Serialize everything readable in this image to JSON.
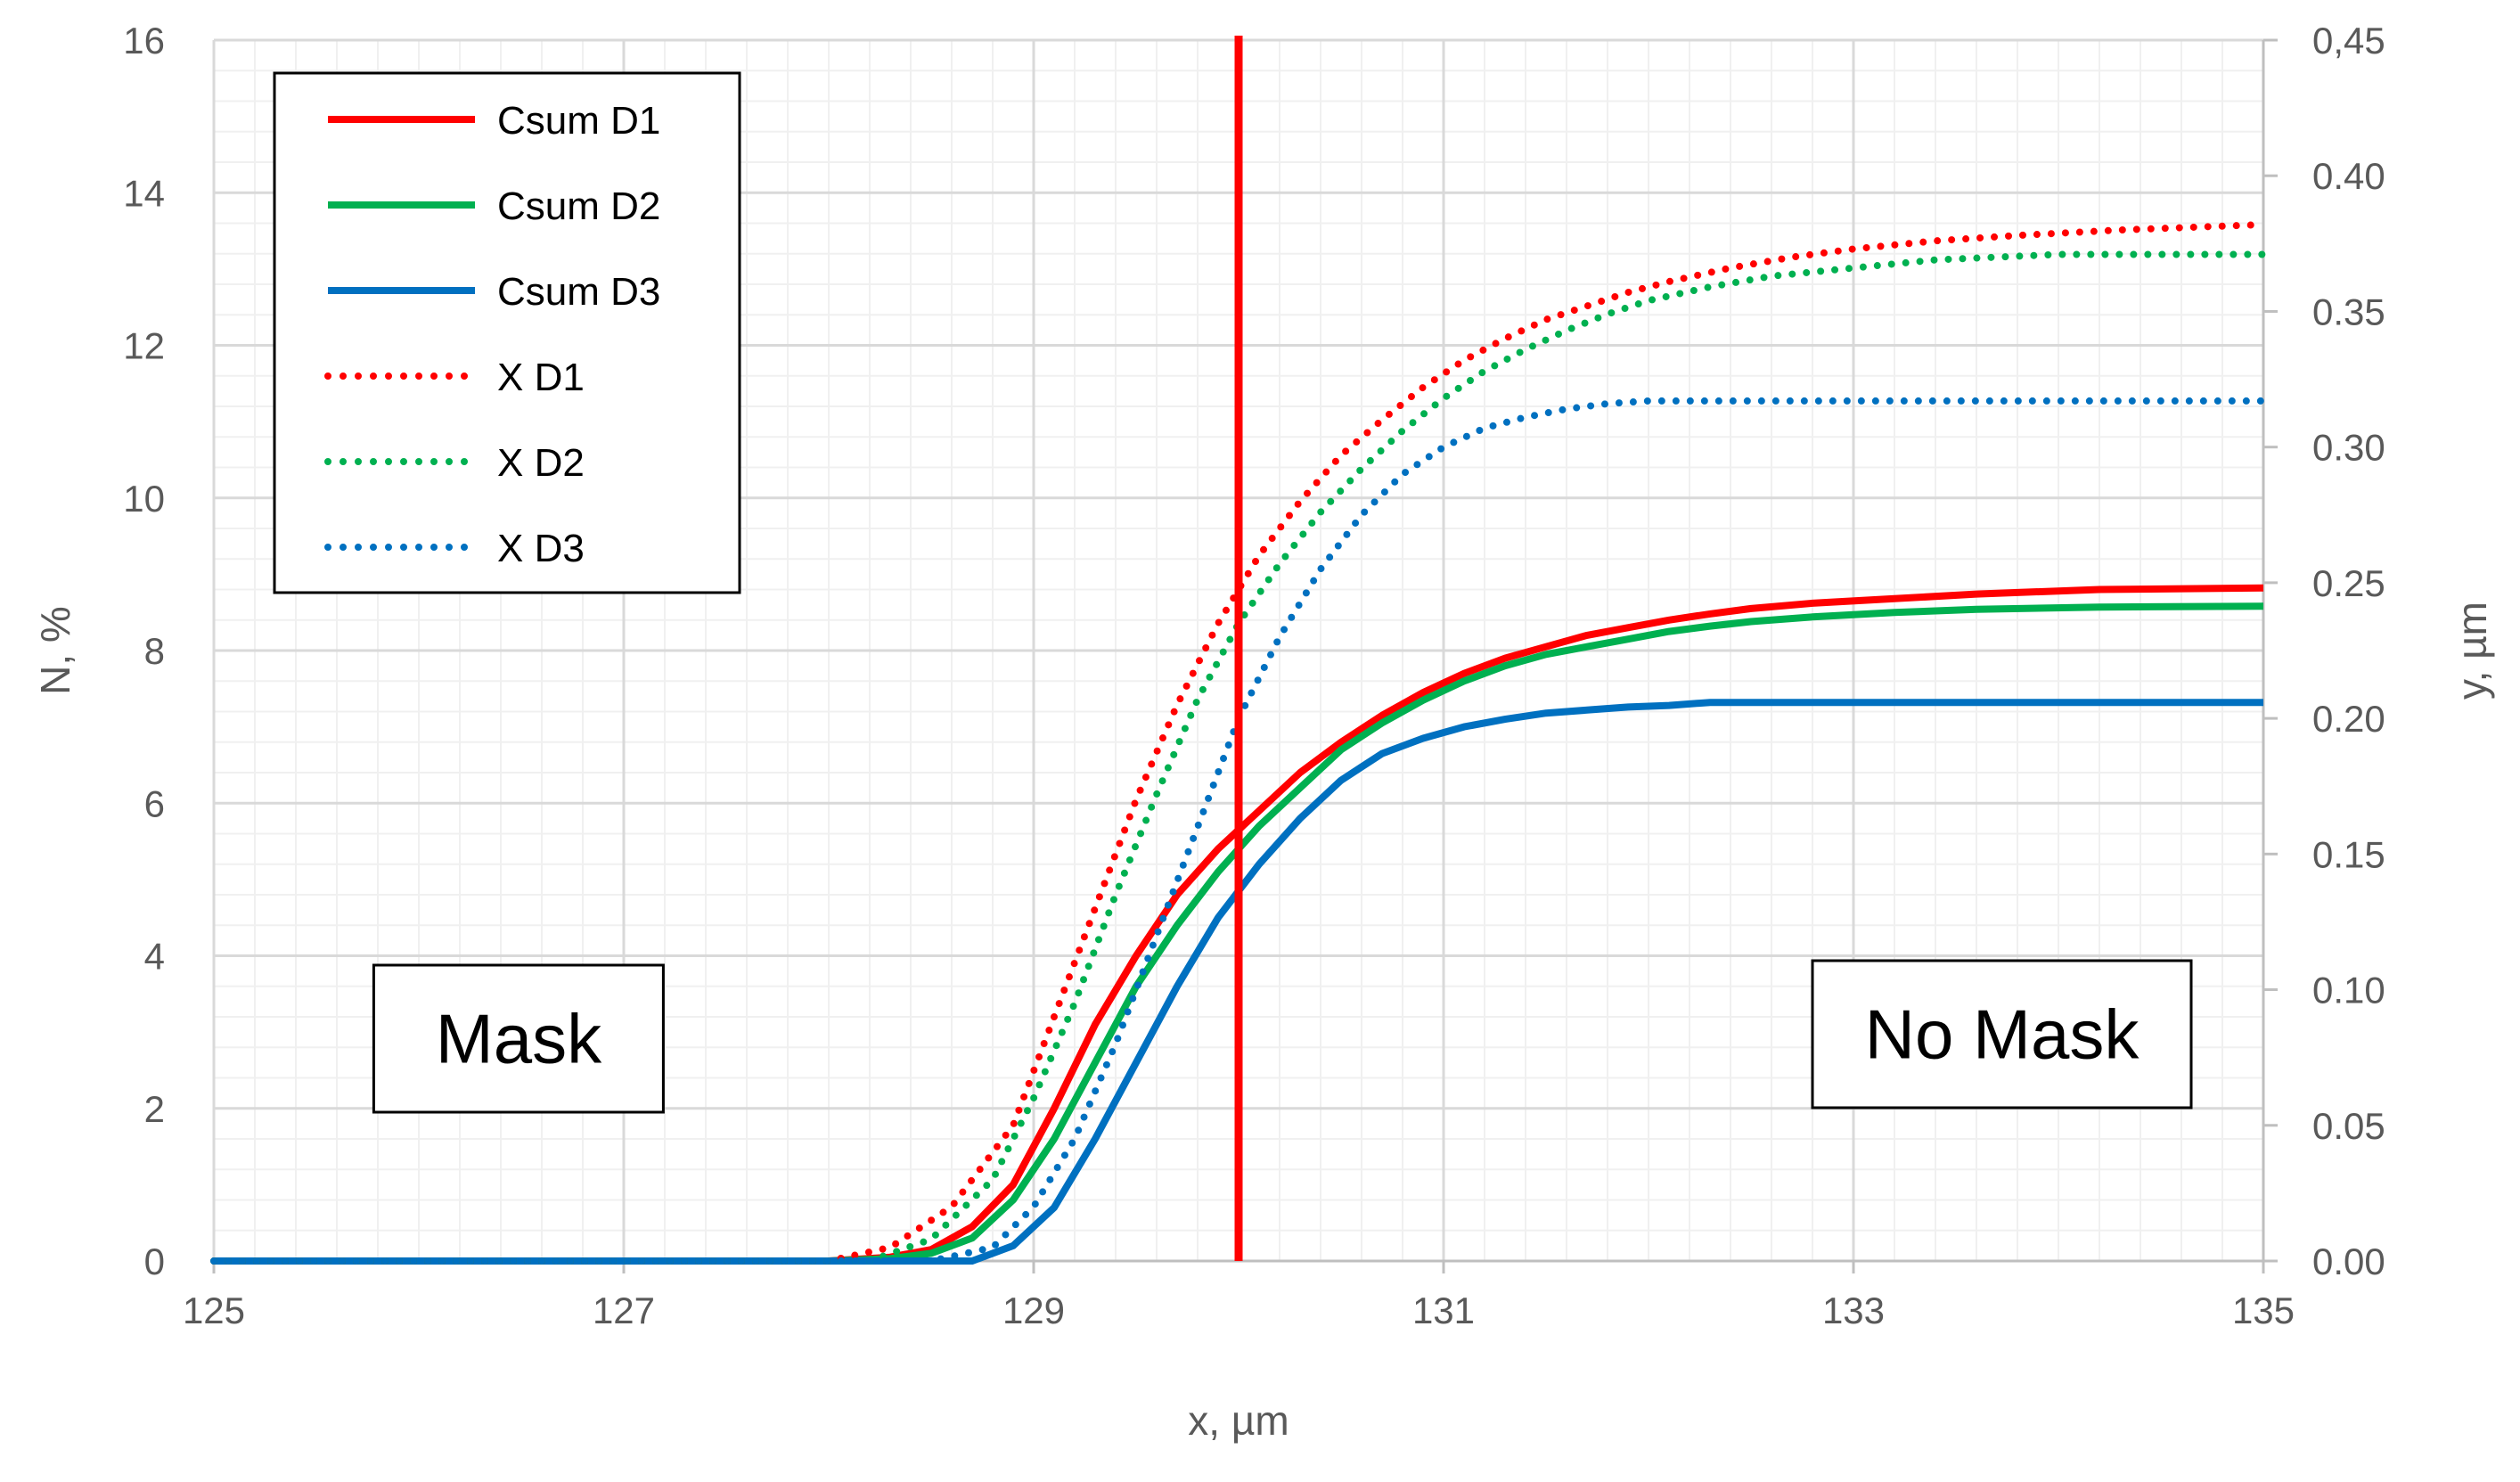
{
  "chart_data": {
    "type": "line",
    "xlabel": "x, µm",
    "ylabel_left": "N, %",
    "ylabel_right": "y, µm",
    "xlim": [
      125,
      135
    ],
    "ylim_left": [
      0,
      16
    ],
    "ylim_right": [
      0,
      0.45
    ],
    "x_ticks": [
      "125",
      "127",
      "129",
      "131",
      "133",
      "135"
    ],
    "y_left_ticks": [
      "0",
      "2",
      "4",
      "6",
      "8",
      "10",
      "12",
      "14",
      "16"
    ],
    "y_right_ticks": [
      "0.00",
      "0.05",
      "0.10",
      "0.15",
      "0.20",
      "0.25",
      "0.30",
      "0.35",
      "0.40",
      "0,45"
    ],
    "grid": true,
    "legend_position": "top-left",
    "series": [
      {
        "name": "Csum D1",
        "axis": "left",
        "style": "solid",
        "color": "#ff0000",
        "x": [
          125,
          128,
          128.3,
          128.5,
          128.7,
          128.9,
          129.1,
          129.3,
          129.5,
          129.7,
          129.9,
          130.1,
          130.3,
          130.5,
          130.7,
          130.9,
          131.1,
          131.3,
          131.5,
          131.7,
          131.9,
          132.1,
          132.3,
          132.5,
          132.8,
          133.2,
          133.6,
          134.2,
          135
        ],
        "values": [
          0,
          0,
          0.05,
          0.15,
          0.45,
          1.0,
          2.0,
          3.1,
          4.0,
          4.8,
          5.4,
          5.9,
          6.4,
          6.8,
          7.15,
          7.45,
          7.7,
          7.9,
          8.05,
          8.2,
          8.3,
          8.4,
          8.48,
          8.55,
          8.62,
          8.68,
          8.74,
          8.8,
          8.82
        ]
      },
      {
        "name": "Csum D2",
        "axis": "left",
        "style": "solid",
        "color": "#00b050",
        "x": [
          125,
          128,
          128.3,
          128.5,
          128.7,
          128.9,
          129.1,
          129.3,
          129.5,
          129.7,
          129.9,
          130.1,
          130.3,
          130.5,
          130.7,
          130.9,
          131.1,
          131.3,
          131.5,
          131.7,
          131.9,
          132.1,
          132.3,
          132.5,
          132.8,
          133.2,
          133.6,
          134.2,
          135
        ],
        "values": [
          0,
          0,
          0.03,
          0.1,
          0.3,
          0.8,
          1.6,
          2.6,
          3.6,
          4.4,
          5.1,
          5.7,
          6.2,
          6.7,
          7.05,
          7.35,
          7.6,
          7.8,
          7.95,
          8.05,
          8.15,
          8.25,
          8.32,
          8.38,
          8.44,
          8.5,
          8.54,
          8.57,
          8.58
        ]
      },
      {
        "name": "Csum D3",
        "axis": "left",
        "style": "solid",
        "color": "#0070c0",
        "x": [
          125,
          128.7,
          128.9,
          129.1,
          129.3,
          129.5,
          129.7,
          129.9,
          130.1,
          130.3,
          130.5,
          130.7,
          130.9,
          131.1,
          131.3,
          131.5,
          131.7,
          131.9,
          132.1,
          132.3,
          135
        ],
        "values": [
          0,
          0,
          0.2,
          0.7,
          1.6,
          2.6,
          3.6,
          4.5,
          5.2,
          5.8,
          6.3,
          6.65,
          6.85,
          7.0,
          7.1,
          7.18,
          7.22,
          7.26,
          7.28,
          7.32,
          7.32
        ]
      },
      {
        "name": "X D1",
        "axis": "right",
        "style": "dotted",
        "color": "#ff0000",
        "x": [
          125,
          128,
          128.3,
          128.6,
          128.9,
          129.1,
          129.3,
          129.5,
          129.7,
          129.9,
          130.1,
          130.3,
          130.5,
          130.7,
          130.9,
          131.1,
          131.3,
          131.5,
          131.7,
          131.9,
          132.1,
          132.4,
          132.7,
          133.0,
          133.4,
          133.8,
          134.3,
          135
        ],
        "values": [
          0,
          0,
          0.005,
          0.02,
          0.05,
          0.09,
          0.13,
          0.17,
          0.205,
          0.235,
          0.26,
          0.28,
          0.297,
          0.31,
          0.322,
          0.332,
          0.34,
          0.347,
          0.352,
          0.357,
          0.361,
          0.366,
          0.37,
          0.373,
          0.376,
          0.378,
          0.38,
          0.382
        ]
      },
      {
        "name": "X D2",
        "axis": "right",
        "style": "dotted",
        "color": "#00b050",
        "x": [
          125,
          128.2,
          128.5,
          128.8,
          129.0,
          129.2,
          129.4,
          129.6,
          129.8,
          130.0,
          130.2,
          130.4,
          130.6,
          130.8,
          131.0,
          131.2,
          131.4,
          131.6,
          131.8,
          132.0,
          132.3,
          132.6,
          133.0,
          133.4,
          134.0,
          135
        ],
        "values": [
          0,
          0,
          0.008,
          0.03,
          0.06,
          0.095,
          0.135,
          0.172,
          0.207,
          0.235,
          0.257,
          0.276,
          0.292,
          0.306,
          0.318,
          0.328,
          0.336,
          0.343,
          0.349,
          0.354,
          0.359,
          0.363,
          0.366,
          0.369,
          0.371,
          0.371
        ]
      },
      {
        "name": "X D3",
        "axis": "right",
        "style": "dotted",
        "color": "#0070c0",
        "x": [
          125,
          128.5,
          128.8,
          129.0,
          129.2,
          129.4,
          129.6,
          129.8,
          130.0,
          130.2,
          130.4,
          130.6,
          130.8,
          131.0,
          131.2,
          131.4,
          131.6,
          131.8,
          132.0,
          132.5,
          133.0,
          135
        ],
        "values": [
          0,
          0,
          0.005,
          0.02,
          0.045,
          0.08,
          0.12,
          0.16,
          0.2,
          0.23,
          0.255,
          0.275,
          0.29,
          0.3,
          0.307,
          0.311,
          0.314,
          0.316,
          0.317,
          0.317,
          0.317,
          0.317
        ]
      }
    ],
    "vertical_marker": {
      "x": 130,
      "color": "#ff0000"
    },
    "annotations": [
      {
        "text": "Mask",
        "x": 126,
        "y": 2.9
      },
      {
        "text": "No Mask",
        "x": 132.8,
        "y": 3.0
      }
    ]
  }
}
